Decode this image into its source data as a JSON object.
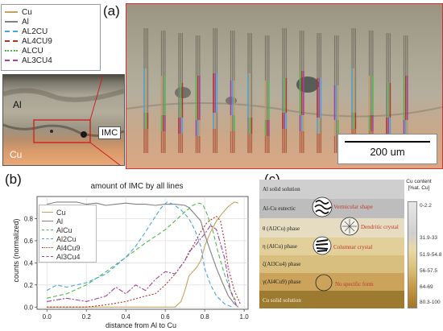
{
  "panel_a": {
    "label": "(a)",
    "legend": [
      {
        "name": "Cu",
        "color": "#c8a060",
        "style": "solid"
      },
      {
        "name": "Al",
        "color": "#808080",
        "style": "solid"
      },
      {
        "name": "AL2CU",
        "color": "#4aa3df",
        "style": "dashed"
      },
      {
        "name": "AL4CU9",
        "color": "#b0302a",
        "style": "dashed"
      },
      {
        "name": "ALCU",
        "color": "#4cbb4c",
        "style": "dotted"
      },
      {
        "name": "AL3CU4",
        "color": "#a040a0",
        "style": "dashdot"
      }
    ],
    "micro_labels": {
      "al": "Al",
      "cu": "Cu",
      "imc": "IMC"
    },
    "scale_bar": "200 um"
  },
  "panel_b": {
    "label": "(b)",
    "chart_data": {
      "type": "line",
      "title": "amount of IMC by all lines",
      "xlabel": "distance from Al to Cu",
      "ylabel": "counts (normalized)",
      "xlim": [
        -0.05,
        1.02
      ],
      "ylim": [
        -0.02,
        1.0
      ],
      "xticks": [
        "0.0",
        "0.2",
        "0.4",
        "0.6",
        "0.8",
        "1.0"
      ],
      "yticks": [
        "0.0",
        "0.2",
        "0.4",
        "0.6",
        "0.8"
      ],
      "grid": true,
      "legend_position": "upper-left",
      "series": [
        {
          "name": "Cu",
          "color": "#c8a060",
          "dash": "",
          "x": [
            0.0,
            0.1,
            0.2,
            0.3,
            0.4,
            0.5,
            0.6,
            0.65,
            0.68,
            0.7,
            0.72,
            0.74,
            0.76,
            0.78,
            0.8,
            0.83,
            0.86,
            0.89,
            0.92,
            0.95,
            0.97
          ],
          "y": [
            0.0,
            0.0,
            0.0,
            0.0,
            0.0,
            0.0,
            0.0,
            0.0,
            0.05,
            0.15,
            0.28,
            0.32,
            0.36,
            0.42,
            0.55,
            0.68,
            0.78,
            0.85,
            0.91,
            0.95,
            0.94
          ]
        },
        {
          "name": "Al",
          "color": "#808080",
          "dash": "",
          "x": [
            0.0,
            0.05,
            0.1,
            0.15,
            0.2,
            0.25,
            0.3,
            0.35,
            0.4,
            0.45,
            0.5,
            0.55,
            0.6,
            0.65,
            0.7,
            0.72,
            0.75,
            0.78,
            0.8,
            0.83,
            0.86,
            0.89,
            0.92,
            0.95,
            0.97
          ],
          "y": [
            0.93,
            0.95,
            0.95,
            0.95,
            0.93,
            0.94,
            0.92,
            0.93,
            0.94,
            0.93,
            0.93,
            0.92,
            0.93,
            0.93,
            0.92,
            0.9,
            0.84,
            0.78,
            0.66,
            0.5,
            0.35,
            0.22,
            0.1,
            0.03,
            0.0
          ]
        },
        {
          "name": "AlCu",
          "color": "#4cbb4c",
          "dash": "5,3",
          "x": [
            0.0,
            0.05,
            0.1,
            0.2,
            0.3,
            0.4,
            0.5,
            0.6,
            0.65,
            0.7,
            0.74,
            0.77,
            0.79,
            0.81,
            0.84,
            0.87,
            0.9,
            0.93,
            0.96
          ],
          "y": [
            0.08,
            0.1,
            0.12,
            0.2,
            0.32,
            0.45,
            0.58,
            0.7,
            0.78,
            0.86,
            0.92,
            0.94,
            0.93,
            0.85,
            0.7,
            0.48,
            0.3,
            0.15,
            0.05
          ]
        },
        {
          "name": "Al2Cu",
          "color": "#4aa3df",
          "dash": "5,3",
          "x": [
            0.0,
            0.05,
            0.1,
            0.2,
            0.3,
            0.4,
            0.45,
            0.5,
            0.55,
            0.58,
            0.61,
            0.64,
            0.68,
            0.72,
            0.75,
            0.78,
            0.8,
            0.83,
            0.86,
            0.9,
            0.94
          ],
          "y": [
            0.15,
            0.2,
            0.18,
            0.22,
            0.3,
            0.45,
            0.55,
            0.68,
            0.82,
            0.9,
            0.95,
            0.93,
            0.88,
            0.8,
            0.7,
            0.55,
            0.35,
            0.2,
            0.1,
            0.03,
            0.0
          ]
        },
        {
          "name": "Al4Cu9",
          "color": "#b0302a",
          "dash": "2,2",
          "x": [
            0.0,
            0.1,
            0.2,
            0.3,
            0.4,
            0.5,
            0.55,
            0.6,
            0.65,
            0.7,
            0.74,
            0.78,
            0.81,
            0.84,
            0.86,
            0.88,
            0.9,
            0.92,
            0.95,
            0.98
          ],
          "y": [
            0.0,
            0.0,
            0.0,
            0.02,
            0.05,
            0.1,
            0.12,
            0.2,
            0.3,
            0.42,
            0.55,
            0.68,
            0.76,
            0.8,
            0.82,
            0.78,
            0.6,
            0.35,
            0.15,
            0.03
          ]
        },
        {
          "name": "Al3Cu4",
          "color": "#a040a0",
          "dash": "6,2,2,2",
          "x": [
            0.0,
            0.1,
            0.2,
            0.3,
            0.35,
            0.4,
            0.45,
            0.5,
            0.55,
            0.6,
            0.65,
            0.7,
            0.72,
            0.75,
            0.78,
            0.8,
            0.83,
            0.86,
            0.9,
            0.93,
            0.96
          ],
          "y": [
            0.05,
            0.08,
            0.05,
            0.1,
            0.18,
            0.12,
            0.2,
            0.15,
            0.25,
            0.32,
            0.3,
            0.42,
            0.5,
            0.55,
            0.62,
            0.66,
            0.74,
            0.7,
            0.45,
            0.15,
            0.02
          ]
        }
      ]
    }
  },
  "panel_c": {
    "label": "(c)",
    "colorbar_title": [
      "Cu content",
      "[%at. Cu]"
    ],
    "colorbar_ticks": [
      "0-2.2",
      "31.9-33",
      "51.9-54.8",
      "56-57.5",
      "64-69",
      "80.3-100"
    ],
    "bands": [
      {
        "label": "Al solid solution",
        "color": "#cfcfcf"
      },
      {
        "label": "Al-Cu eutectic",
        "color": "#bdbdbd"
      },
      {
        "label": "θ (Al2Cu) phase",
        "color": "#e6dcc2"
      },
      {
        "label": "η (AlCu) phase",
        "color": "#e2cf9a"
      },
      {
        "label": "ζ(Al3Cu4) phase",
        "color": "#d9bf7f"
      },
      {
        "label": "γ(Al4Cu9) phase",
        "color": "#cba35b"
      },
      {
        "label": "Cu solid solution",
        "color": "#9c7a30"
      }
    ],
    "annotations": {
      "vermicular": "Vermicular shape",
      "dendritic": "Dendritic crystal",
      "columnar": "Columnar crystal",
      "no_specific": "No specific form"
    }
  }
}
